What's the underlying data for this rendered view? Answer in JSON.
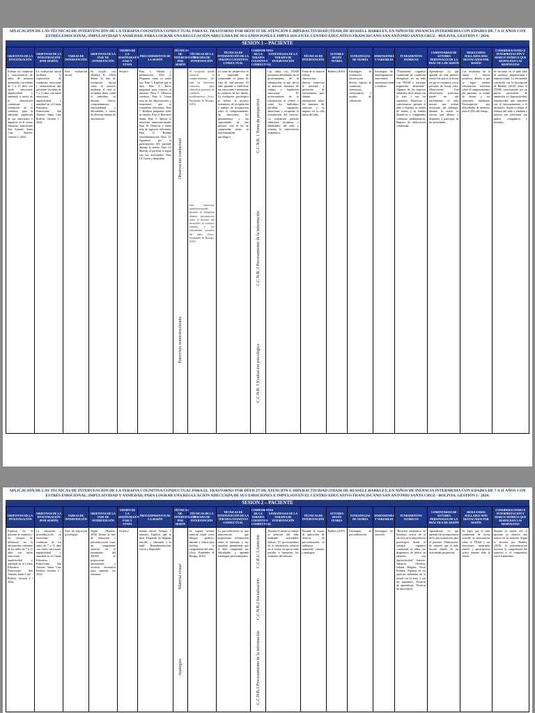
{
  "document": {
    "title": "Aplicación de las técnicas de intervención de la terapia cognitiva conductual para el trastorno por déficit de atención e hiperactividad (TDAH) de Russell Barkley, en niños de infancia intermedia con edades de 7 a 11 años con estrés emocional, impulsividad y ansiedad, para lograr una regulación adecuada de sus emociones e impulsos en el centro educativo franciscano San Antonio Santa Cruz - Bolivia, gestión I / 2024.",
    "session1": "SESION 1 – PACIENTE",
    "session2": "SESION 2 – PACIENTE"
  },
  "columns": [
    "Objetivos de la investigación",
    "Objetivos de la investigación (por sesión)",
    "Tareas de intervención",
    "Objetivos de la fase de intervención",
    "Tiempo de la sesión/Según fase y etapa",
    "Procedimientos de la sesión",
    "Técnicas de intervención por sesión",
    "Técnicas de la terapia de intervención",
    "Técnicas de intervención de la terapia cognitivo conductual",
    "Componentes de la terapia cognitivo conductual",
    "Estrategias de la terapia de intervención",
    "Técnicas de intervención",
    "Autores según teoría",
    "Estrategias de teoría",
    "Dimensiones y variables",
    "Fundamentos teóricos",
    "Comentarios de autores personales de la práctica de sesión",
    "Resultados hallados más destacados por sesión",
    "Consideraciones e interpretación y marco teórico que respaldan las respuestas"
  ],
  "page1": {
    "col1": "Evaluar las conductas y características de niños de infancia intermedia con edades de 7 a 11 años con estrés emocional, impulsividad y ansiedad, a través de la observación conductual y evaluación de la conducta, para la adecuada regulación de sus emociones e impulsos en el centro educativo franciscano San Antonio Santa Cruz - Bolivia, Gestión I / 2024.",
    "col2": "La evaluación inicial facilitará la exploración de conductas, emociones y características que presenten los niños de 7 a 11 años con estrés emocional, impulsividad y ansiedad en el Centro Educativo Franciscano San Antonio Santa Cruz Bolivia, Gestión I / 2024.",
    "col3": "Fase evaluación inicial",
    "col4": "Se acordó con (Barkley R., 2016) definir la fase de evaluación inicial como el proceso mediante el cual se recopilan datos sobre el individuo, su historia clínica, comportamiento, funcionalidad y dificultades a través de diversas fuentes de información.",
    "col5": "Sesión 1",
    "col6": "Paso 1. Saludo y presentación. Paso 2. Preguntar cómo se siente hoy. Paso 3. Explicar qué se hará. Paso 4. Hacer preguntas para conocer al paciente. Paso 5. Observar conducta. Paso 6. Tomar nota de las observaciones y situaciones que se consideren relevantes. Paso 7. Realizar preguntas sobre su familia. Paso 8. Reactivar dudas. Paso 9. Aplicar la entrevista semiestructurada. Paso 10. Observar y tomar nota de aspectos relevantes. Paso 11. Brindar retroalimentación. Paso 12. Agradecer por la participación del paciente durante la sesión. Paso 13. Motivar al paciente a seguir con sus actividades. Paso 14. Cierre y despedida.",
    "col7_top": "Observación conductual",
    "col7_bottom": "Entrevista semiestructurada",
    "col8_top": "El terapeuta puede observar el comportamiento del niño en diferentes contextos para identificar patrones de conducta problemáticos. (Arce, Fernández & Rosago, 2016)",
    "col8_bottom": "Una entrevista semiestructurada permite al terapeuta obtener información sobre la historia del desarrollo, el contexto familiar y las dificultades actuales del niño. (Arce, Fernández & Rosago, 2016)",
    "col9": "La toma de perspectiva es la capacidad de comprender el punto de vista de otra persona. El niño aprende a identificar sus emociones e interpretar la conducta de los demás. La evaluación psicológica se refiere al proceso sistemático de recopilación y análisis de información sobre el comportamiento, las emociones, los pensamientos y las capacidades de una persona, con el fin de comprender mejor su funcionamiento psicológico.",
    "col10_top": "C.C.N.B. 1 Toma de perspectiva",
    "col10_mid": "C.C.N.B. 2 Procesamiento de la información",
    "col10_bottom": "C.C.N.B. 3 Evaluación psicológica",
    "col11": "Los niños con TDAH presentan dificultades en el procesamiento de la información, lo que afecta su atención, memoria de trabajo y regulación emocional. El procesamiento de la información se refiere a cómo los individuos perciben, organizan, almacenan y recuperan la información del entorno. La evaluación permite identificar fortalezas y debilidades del niño y orientar la intervención terapéutica.",
    "col12": "Toma de la historia clínica, observación directa, entrevista al paciente y aplicación de cuestionarios para obtener información sobre los síntomas del trastorno y su impacto en la vida diaria del niño.",
    "col13": "Barkley (2016)",
    "col14": "Estrategias de evaluación: observación directa, registro de conductas, entrevistas, cuestionarios y escalas de valoración.",
    "col15": "Estrategias de autorregulación: autocontrol, autoinstrucciones y refuerzo.",
    "col16": "\"Tratamiento cognitivo conductual de conductas disruptivas en un niño con TDAH y trastorno negativista desafiante\". Algunos de los aspectos señalados de la sesión con la tesis 1 son los siguientes: Entrevista y cuestionarios: permite al niño a expresar su estado de ánimo y la familia identificar y comprender conductas problemáticas. Registro de observación conductual.",
    "col17": "Aprendizaje: Lo que aprendí en esta primera sesión fue que es la forma en que se comunica con el paciente de forma clara. Observación: Una observación particular puede ser que inicialmente el niño mostró una actitud reservada, sin embargo, durante la sesión se mostró más abierto y dispuesto a participar en las actividades.",
    "col18": "Los resultados de la sesión 1 fueron positivos, debido a que se logró obtener información relevante sobre el comportamiento del paciente, su estado de ánimo y sus relaciones familiares. Preocupación por dificultades de atención, para el 45% del tiempo.",
    "col19": "Se encontró en el niño falta de atención, impulsividad e hiperactividad. Lo encontrado concuerda con la descripción de Barkley (2016) sobre el TDAH, caracterizado por un patrón persistente de inatención y/o hiperactividad-impulsividad que interfiere con el funcionamiento o el desarrollo. Ayuda a reducir el rechazo del niño y también a mejorar sus relaciones con padres, compañeros y docentes."
  },
  "page2": {
    "col1": "Explorar en el paciente la conducta y los factores de influencia en la información relevante de los niños de 7 a 11 años con estrés emocional, impulsividad y ansiedad en el Centro Educativo Franciscano San Antonio Santa Cruz - Bolivia, Gestión I / 2024.",
    "col2": "La educación y psicoeducación en emociones y conductas de los niños de 7 a 11 años con estrés emocional, impulsividad y ansiedad en el Centro Educativo Franciscano San Antonio Santa Cruz Bolivia, Gestión I / 2024.",
    "col3": "Fase de educación psicológica",
    "col4": "Según (Barkley, 2016) definir la fase de educación y psicoeducación como un componente esencial en el tratamiento del TDAH, se proporciona información y recursos necesarios para manejar los síntomas.",
    "col5": "Sesión 2",
    "col6": "Saludo inicial. Tiempo: 5 minutos. Explicar qué se hará. Preguntar en lenguaje sencillo y adecuado a la edad. Retroalimentación. Cierre y despedida.",
    "col7_top": "Material visual",
    "col7_bottom": "Analogías",
    "col8": "Se sugiere utilizar material visual como dibujos, gráficos, láminas y videos para facilitar la comprensión del niño. (Arce, Fernández & Rosago, 2016)",
    "col9": "La psicoeducación es una intervención que proporciona información sobre el trastorno y sus síntomas, permitiendo que el niño comprenda sus dificultades y aprenda estrategias para manejarlas.",
    "col10_top": "C.C.E.U.1 Atención",
    "col10_mid": "C.C.N.B.2 Socialización",
    "col10_bottom": "C.C.N.B.3 Procesamiento de la información",
    "col11": "Durante la sesión se trabajó la atención del niño mediante actividades lúdicas. El procesamiento de la información consiste en la forma en que el niño percibe e interpreta los estímulos del entorno.",
    "col12": "Durante la sesión de aplicación de técnicas de psicoeducación se utilizaron materiales visuales y analogías.",
    "col13": "Barkley (2016)",
    "col14": "Estrategias de psicoeducación.",
    "col15": "Estrategias de atención.",
    "col16": "\"Revisión sistemática de literatura acerca de la eficacia en la intervención psicológica desde el enfoque cognitivo conductual en niños con diagnóstico de déficit de atención con hiperactividad\". Autores: Valencia Oliveros, Salazar Holguín, Tovar Romero. Algunos de los aspectos señalados de la sesión con la tesis 2 son los siguientes: Técnicas de aprendizaje. Técnicas de autocontrol.",
    "col17": "Aprendizaje: Lo que aprendí fue la importancia de la psicoeducación para el paciente. Observación: Se observó que el niño mostró interés en las actividades propuestas.",
    "col18": "Se logró que el niño comprenda de forma sencilla la información sobre el TDAH y sus emociones, mostrando interés y participación activa durante toda la sesión.",
    "col19": "Durante la sesión con el paciente se observó una mejora en su atención. Según lo descrito por Barkley (2016), la psicoeducación favorece la comprensión del trastorno y el compromiso con el tratamiento."
  }
}
